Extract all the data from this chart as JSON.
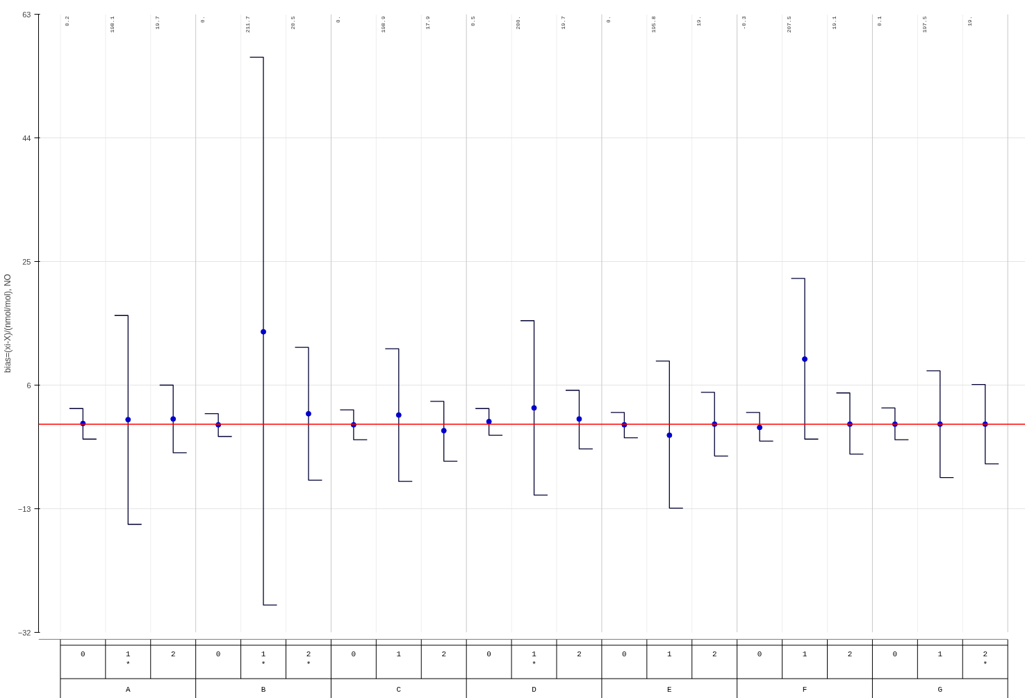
{
  "chart_data": {
    "type": "scatter",
    "ylabel": "bias=(xi-X)/(nmol/mol), NO",
    "categories": [
      "0",
      "1\n*",
      "2",
      "0",
      "1\n*",
      "2\n*",
      "0",
      "1",
      "2",
      "0",
      "1\n*",
      "2",
      "0",
      "1",
      "2",
      "0",
      "1",
      "2",
      "0",
      "1",
      "2\n*"
    ],
    "series": [
      {
        "color": "#0000cc",
        "values": [
          0.1,
          0.7,
          0.8,
          -0.1,
          14.2,
          1.6,
          -0.1,
          1.4,
          -1.0,
          0.4,
          2.5,
          0.8,
          -0.1,
          -1.7,
          0.0,
          -0.5,
          10.0,
          0.0,
          0.0,
          0.0,
          0.0
        ],
        "errors": [
          [
            -2.3,
            2.4
          ],
          [
            -15.4,
            16.7
          ],
          [
            -4.4,
            6.0
          ],
          [
            -1.9,
            1.6
          ],
          [
            -27.8,
            56.4
          ],
          [
            -8.6,
            11.8
          ],
          [
            -2.4,
            2.2
          ],
          [
            -8.8,
            11.6
          ],
          [
            -5.7,
            3.5
          ],
          [
            -1.7,
            2.4
          ],
          [
            -10.9,
            15.9
          ],
          [
            -3.8,
            5.2
          ],
          [
            -2.1,
            1.8
          ],
          [
            -12.9,
            9.7
          ],
          [
            -4.9,
            4.9
          ],
          [
            -2.6,
            1.8
          ],
          [
            -2.3,
            22.4
          ],
          [
            -4.6,
            4.8
          ],
          [
            -2.4,
            2.5
          ],
          [
            -8.2,
            8.2
          ],
          [
            -6.1,
            6.1
          ]
        ]
      }
    ],
    "ylim": [
      -32,
      63
    ],
    "yticks": [
      -32,
      -13,
      6,
      25,
      44,
      63
    ],
    "grid": "y",
    "marker": "circle",
    "ref_lines": [
      {
        "axis": "y",
        "value": 0,
        "color": "#ff0000"
      }
    ],
    "annotations": [
      "0.2",
      "198.1",
      "19.7",
      "0.",
      "211.7",
      "20.5",
      "0.",
      "198.9",
      "17.9",
      "0.5",
      "200.",
      "19.7",
      "0.",
      "195.8",
      "19.",
      "-0.3",
      "207.5",
      "19.1",
      "0.1",
      "197.5",
      "19.",
      "A",
      "B",
      "C",
      "D",
      "E",
      "F",
      "G"
    ]
  }
}
